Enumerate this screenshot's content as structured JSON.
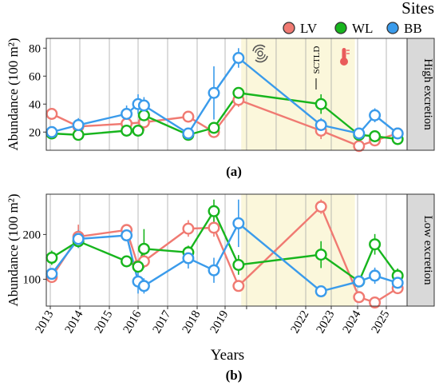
{
  "legend": {
    "title": "Sites",
    "items": [
      {
        "label": "LV",
        "color": "#F07A72"
      },
      {
        "label": "WL",
        "color": "#17B51D"
      },
      {
        "label": "BB",
        "color": "#3A9BEB"
      }
    ]
  },
  "annotation": {
    "sctld": "SCTLD",
    "hurricane_icon": "hurricane-icon",
    "thermometer_icon": "thermometer-icon"
  },
  "x_tick_labels": [
    "2013",
    "2014",
    "2015",
    "2016",
    "2017",
    "2018",
    "2019",
    "2022",
    "2023",
    "2024",
    "2025"
  ],
  "x_axis_label": "Years",
  "chart_data": [
    {
      "type": "line",
      "panel_tag": "(a)",
      "strip_label": "High excretion",
      "ylabel": "Abundance (100 m²)",
      "ylim": [
        7,
        87
      ],
      "y_ticks": [
        20,
        40,
        60,
        80
      ],
      "grid": true,
      "shaded_periods": [
        [
          2019.6,
          2023.9
        ]
      ],
      "series": [
        {
          "name": "LV",
          "color": "#F07A72",
          "points": [
            {
              "x": 2013.05,
              "y": 33,
              "lo": 33,
              "hi": 33
            },
            {
              "x": 2013.95,
              "y": 24,
              "lo": 20,
              "hi": 28
            },
            {
              "x": 2015.6,
              "y": 26,
              "lo": 23,
              "hi": 29
            },
            {
              "x": 2016.2,
              "y": 27,
              "lo": 21,
              "hi": 33
            },
            {
              "x": 2017.7,
              "y": 31,
              "lo": 29,
              "hi": 33
            },
            {
              "x": 2018.6,
              "y": 20,
              "lo": 19,
              "hi": 21
            },
            {
              "x": 2019.5,
              "y": 43,
              "lo": 38,
              "hi": 48
            },
            {
              "x": 2022.6,
              "y": 21,
              "lo": 15,
              "hi": 27
            },
            {
              "x": 2024.05,
              "y": 10,
              "lo": 9,
              "hi": 11
            },
            {
              "x": 2024.6,
              "y": 14,
              "lo": 12,
              "hi": 16
            },
            {
              "x": 2025.3,
              "y": 19,
              "lo": 16,
              "hi": 22
            }
          ]
        },
        {
          "name": "WL",
          "color": "#17B51D",
          "points": [
            {
              "x": 2013.05,
              "y": 19,
              "lo": 17,
              "hi": 21
            },
            {
              "x": 2013.95,
              "y": 18,
              "lo": 16,
              "hi": 20
            },
            {
              "x": 2015.6,
              "y": 21,
              "lo": 19,
              "hi": 23
            },
            {
              "x": 2016.0,
              "y": 21,
              "lo": 19,
              "hi": 23
            },
            {
              "x": 2016.2,
              "y": 32,
              "lo": 27,
              "hi": 37
            },
            {
              "x": 2017.7,
              "y": 18,
              "lo": 16,
              "hi": 20
            },
            {
              "x": 2018.6,
              "y": 23,
              "lo": 20,
              "hi": 26
            },
            {
              "x": 2019.5,
              "y": 48,
              "lo": 45,
              "hi": 51
            },
            {
              "x": 2022.6,
              "y": 40,
              "lo": 33,
              "hi": 47
            },
            {
              "x": 2024.05,
              "y": 18,
              "lo": 16,
              "hi": 20
            },
            {
              "x": 2024.6,
              "y": 17,
              "lo": 15,
              "hi": 19
            },
            {
              "x": 2025.3,
              "y": 15,
              "lo": 12,
              "hi": 18
            }
          ]
        },
        {
          "name": "BB",
          "color": "#3A9BEB",
          "points": [
            {
              "x": 2013.05,
              "y": 20,
              "lo": 18,
              "hi": 22
            },
            {
              "x": 2013.95,
              "y": 25,
              "lo": 20,
              "hi": 30
            },
            {
              "x": 2015.6,
              "y": 33,
              "lo": 27,
              "hi": 39
            },
            {
              "x": 2016.0,
              "y": 40,
              "lo": 33,
              "hi": 47
            },
            {
              "x": 2016.2,
              "y": 39,
              "lo": 31,
              "hi": 45
            },
            {
              "x": 2017.7,
              "y": 19,
              "lo": 17,
              "hi": 21
            },
            {
              "x": 2018.6,
              "y": 48,
              "lo": 29,
              "hi": 67
            },
            {
              "x": 2019.5,
              "y": 73,
              "lo": 66,
              "hi": 80
            },
            {
              "x": 2022.6,
              "y": 25,
              "lo": 20,
              "hi": 30
            },
            {
              "x": 2024.05,
              "y": 19,
              "lo": 17,
              "hi": 21
            },
            {
              "x": 2024.6,
              "y": 32,
              "lo": 27,
              "hi": 37
            },
            {
              "x": 2025.3,
              "y": 19,
              "lo": 16,
              "hi": 22
            }
          ]
        }
      ]
    },
    {
      "type": "line",
      "panel_tag": "(b)",
      "strip_label": "Low excretion",
      "ylabel": "Abundance (100 m²)",
      "ylim": [
        40,
        290
      ],
      "y_ticks": [
        100,
        200
      ],
      "grid": true,
      "shaded_periods": [
        [
          2019.6,
          2023.9
        ]
      ],
      "series": [
        {
          "name": "LV",
          "color": "#F07A72",
          "points": [
            {
              "x": 2013.05,
              "y": 105,
              "lo": 95,
              "hi": 115
            },
            {
              "x": 2013.95,
              "y": 195,
              "lo": 170,
              "hi": 222
            },
            {
              "x": 2015.6,
              "y": 210,
              "lo": 198,
              "hi": 222
            },
            {
              "x": 2016.0,
              "y": 130,
              "lo": 118,
              "hi": 142
            },
            {
              "x": 2016.2,
              "y": 140,
              "lo": 128,
              "hi": 152
            },
            {
              "x": 2017.7,
              "y": 213,
              "lo": 195,
              "hi": 232
            },
            {
              "x": 2018.6,
              "y": 215,
              "lo": 195,
              "hi": 238
            },
            {
              "x": 2019.5,
              "y": 85,
              "lo": 78,
              "hi": 92
            },
            {
              "x": 2022.6,
              "y": 262,
              "lo": 246,
              "hi": 278
            },
            {
              "x": 2024.05,
              "y": 60,
              "lo": 52,
              "hi": 68
            },
            {
              "x": 2024.6,
              "y": 48,
              "lo": 42,
              "hi": 54
            },
            {
              "x": 2025.3,
              "y": 80,
              "lo": 70,
              "hi": 90
            }
          ]
        },
        {
          "name": "WL",
          "color": "#17B51D",
          "points": [
            {
              "x": 2013.05,
              "y": 148,
              "lo": 132,
              "hi": 164
            },
            {
              "x": 2013.95,
              "y": 185,
              "lo": 170,
              "hi": 200
            },
            {
              "x": 2015.6,
              "y": 140,
              "lo": 128,
              "hi": 152
            },
            {
              "x": 2016.0,
              "y": 128,
              "lo": 118,
              "hi": 138
            },
            {
              "x": 2016.2,
              "y": 168,
              "lo": 125,
              "hi": 212
            },
            {
              "x": 2017.7,
              "y": 160,
              "lo": 145,
              "hi": 175
            },
            {
              "x": 2018.6,
              "y": 252,
              "lo": 226,
              "hi": 278
            },
            {
              "x": 2019.5,
              "y": 132,
              "lo": 110,
              "hi": 154
            },
            {
              "x": 2022.6,
              "y": 155,
              "lo": 125,
              "hi": 185
            },
            {
              "x": 2024.05,
              "y": 95,
              "lo": 88,
              "hi": 102
            },
            {
              "x": 2024.6,
              "y": 178,
              "lo": 155,
              "hi": 201
            },
            {
              "x": 2025.3,
              "y": 108,
              "lo": 92,
              "hi": 124
            }
          ]
        },
        {
          "name": "BB",
          "color": "#3A9BEB",
          "points": [
            {
              "x": 2013.05,
              "y": 112,
              "lo": 102,
              "hi": 122
            },
            {
              "x": 2013.95,
              "y": 190,
              "lo": 170,
              "hi": 210
            },
            {
              "x": 2015.6,
              "y": 198,
              "lo": 186,
              "hi": 210
            },
            {
              "x": 2016.0,
              "y": 95,
              "lo": 68,
              "hi": 122
            },
            {
              "x": 2016.2,
              "y": 85,
              "lo": 68,
              "hi": 102
            },
            {
              "x": 2017.7,
              "y": 147,
              "lo": 124,
              "hi": 170
            },
            {
              "x": 2018.6,
              "y": 120,
              "lo": 92,
              "hi": 148
            },
            {
              "x": 2019.5,
              "y": 225,
              "lo": 172,
              "hi": 278
            },
            {
              "x": 2022.6,
              "y": 73,
              "lo": 63,
              "hi": 83
            },
            {
              "x": 2024.05,
              "y": 95,
              "lo": 86,
              "hi": 104
            },
            {
              "x": 2024.6,
              "y": 108,
              "lo": 90,
              "hi": 126
            },
            {
              "x": 2025.3,
              "y": 92,
              "lo": 78,
              "hi": 106
            }
          ]
        }
      ]
    }
  ]
}
